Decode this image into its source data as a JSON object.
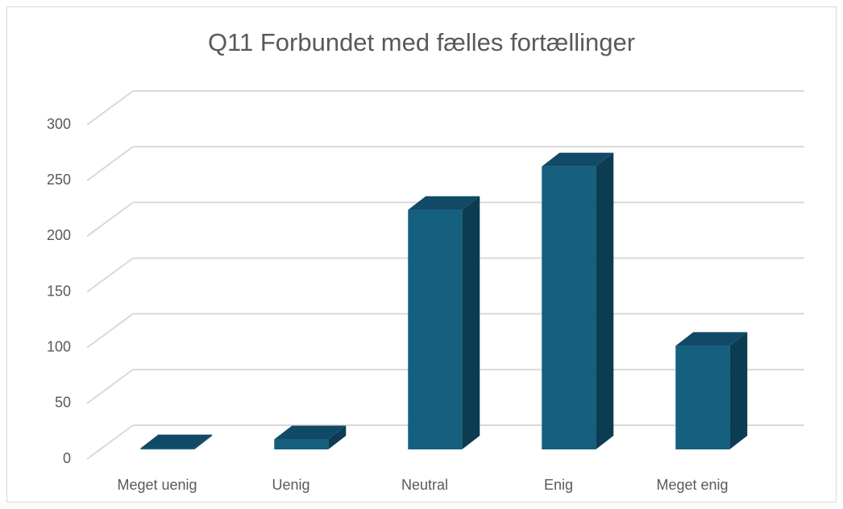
{
  "chart_data": {
    "type": "bar3d",
    "title": "Q11 Forbundet med fælles fortællinger",
    "categories": [
      "Meget uenig",
      "Uenig",
      "Neutral",
      "Enig",
      "Meget enig"
    ],
    "values": [
      1,
      9,
      215,
      254,
      93
    ],
    "color": "#155f7f",
    "ylim": [
      0,
      300
    ],
    "yticks": [
      0,
      50,
      100,
      150,
      200,
      250,
      300
    ],
    "grid": true
  }
}
